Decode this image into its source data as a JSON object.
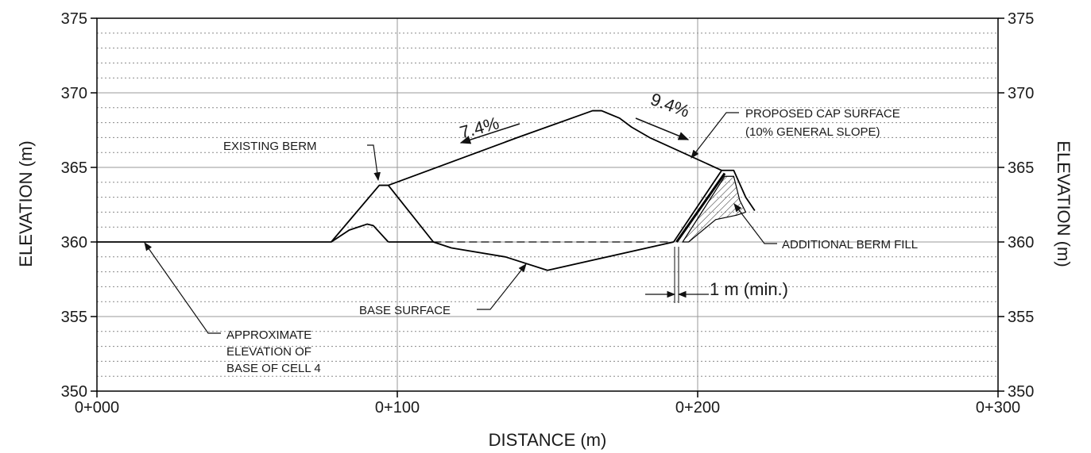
{
  "chart_data": {
    "type": "line",
    "xlabel": "DISTANCE (m)",
    "ylabel_left": "ELEVATION (m)",
    "ylabel_right": "ELEVATION (m)",
    "xlim": [
      0,
      300
    ],
    "ylim": [
      350,
      375
    ],
    "x_ticks": [
      {
        "value": 0,
        "label": "0+000"
      },
      {
        "value": 100,
        "label": "0+100"
      },
      {
        "value": 200,
        "label": "0+200"
      },
      {
        "value": 300,
        "label": "0+300"
      }
    ],
    "y_ticks": [
      {
        "value": 350,
        "label": "350"
      },
      {
        "value": 355,
        "label": "355"
      },
      {
        "value": 360,
        "label": "360"
      },
      {
        "value": 365,
        "label": "365"
      },
      {
        "value": 370,
        "label": "370"
      },
      {
        "value": 375,
        "label": "375"
      }
    ],
    "major_grid": true,
    "minor_grid_y_step": 1,
    "series": [
      {
        "key": "cap",
        "points": [
          [
            78,
            360
          ],
          [
            94,
            363.8
          ],
          [
            97,
            363.8
          ],
          [
            140,
            367
          ],
          [
            165,
            368.8
          ],
          [
            168,
            368.8
          ],
          [
            174,
            368.3
          ],
          [
            178,
            367.7
          ],
          [
            184,
            367
          ],
          [
            208,
            364.8
          ]
        ]
      },
      {
        "key": "berm_inner",
        "points": [
          [
            97,
            363.8
          ],
          [
            112,
            360
          ]
        ]
      },
      {
        "key": "existing_ground",
        "points": [
          [
            0,
            360
          ],
          [
            78,
            360
          ],
          [
            84,
            360.8
          ],
          [
            90,
            361.2
          ],
          [
            92,
            361.1
          ],
          [
            97,
            360
          ]
        ]
      },
      {
        "key": "base",
        "points": [
          [
            97,
            360
          ],
          [
            112,
            360
          ],
          [
            118,
            359.6
          ],
          [
            136,
            359
          ],
          [
            150,
            358.1
          ],
          [
            192,
            360
          ]
        ]
      },
      {
        "key": "base_dashed",
        "dashed": true,
        "points": [
          [
            112,
            360
          ],
          [
            192,
            360
          ]
        ]
      },
      {
        "key": "berm_outer",
        "points": [
          [
            192,
            360
          ],
          [
            208,
            364.8
          ],
          [
            212,
            364.8
          ],
          [
            216,
            363
          ],
          [
            219,
            362.1
          ]
        ]
      },
      {
        "key": "liner",
        "points": [
          [
            193,
            360
          ],
          [
            209,
            364.6
          ]
        ]
      }
    ],
    "hatch_region": [
      [
        195,
        360
      ],
      [
        209,
        364.4
      ],
      [
        212,
        364.4
      ],
      [
        214,
        362.8
      ],
      [
        216,
        362
      ],
      [
        213,
        361.8
      ],
      [
        206,
        361.5
      ],
      [
        200,
        360.5
      ],
      [
        197,
        360
      ]
    ],
    "annotations": {
      "slope_left": "7.4%",
      "slope_right": "9.4%",
      "proposed_cap_line1": "PROPOSED CAP  SURFACE",
      "proposed_cap_line2": "(10% GENERAL SLOPE)",
      "existing_berm": "EXISTING BERM",
      "additional_berm_fill": "ADDITIONAL BERM FILL",
      "base_surface": "BASE SURFACE",
      "min_offset": "1 m (min.)",
      "approx_line1": "APPROXIMATE",
      "approx_line2": "ELEVATION OF",
      "approx_line3": "BASE OF CELL 4"
    }
  }
}
